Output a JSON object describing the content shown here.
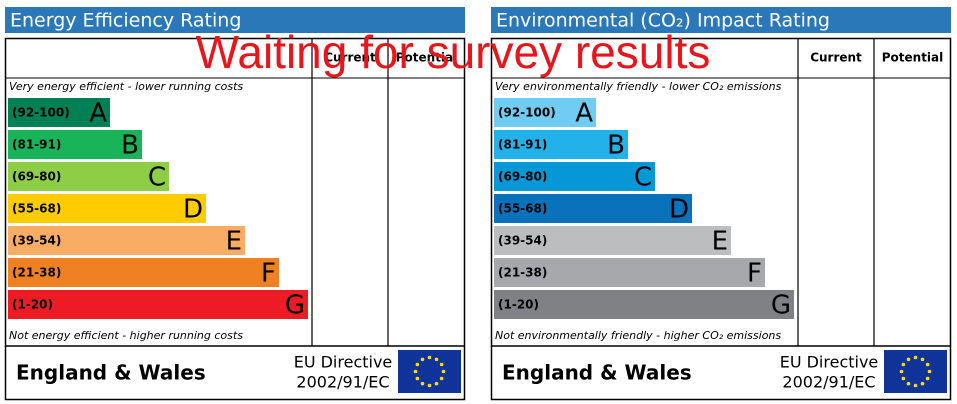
{
  "overlay": "Waiting for survey results",
  "panels": [
    {
      "title": "Energy Efficiency Rating",
      "headers": [
        "Current",
        "Potential"
      ],
      "top_note": "Very energy efficient - lower running costs",
      "bottom_note": "Not energy efficient - higher running costs",
      "bands": [
        {
          "range": "(92-100)",
          "letter": "A",
          "color": "#008054"
        },
        {
          "range": "(81-91)",
          "letter": "B",
          "color": "#19b459"
        },
        {
          "range": "(69-80)",
          "letter": "C",
          "color": "#8dce46"
        },
        {
          "range": "(55-68)",
          "letter": "D",
          "color": "#ffcc00"
        },
        {
          "range": "(39-54)",
          "letter": "E",
          "color": "#f9ac64"
        },
        {
          "range": "(21-38)",
          "letter": "F",
          "color": "#f08122"
        },
        {
          "range": "(1-20)",
          "letter": "G",
          "color": "#ed1c24"
        }
      ],
      "region": "England & Wales",
      "directive": [
        "EU Directive",
        "2002/91/EC"
      ]
    },
    {
      "title": "Environmental (CO₂) Impact Rating",
      "headers": [
        "Current",
        "Potential"
      ],
      "top_note": "Very environmentally friendly - lower CO₂ emissions",
      "bottom_note": "Not environmentally friendly - higher CO₂ emissions",
      "bands": [
        {
          "range": "(92-100)",
          "letter": "A",
          "color": "#6fcdf3"
        },
        {
          "range": "(81-91)",
          "letter": "B",
          "color": "#22b1e8"
        },
        {
          "range": "(69-80)",
          "letter": "C",
          "color": "#0597d6"
        },
        {
          "range": "(55-68)",
          "letter": "D",
          "color": "#0a72ba"
        },
        {
          "range": "(39-54)",
          "letter": "E",
          "color": "#bbbdbf"
        },
        {
          "range": "(21-38)",
          "letter": "F",
          "color": "#a6a8ab"
        },
        {
          "range": "(1-20)",
          "letter": "G",
          "color": "#808184"
        }
      ],
      "region": "England & Wales",
      "directive": [
        "EU Directive",
        "2002/91/EC"
      ]
    }
  ]
}
